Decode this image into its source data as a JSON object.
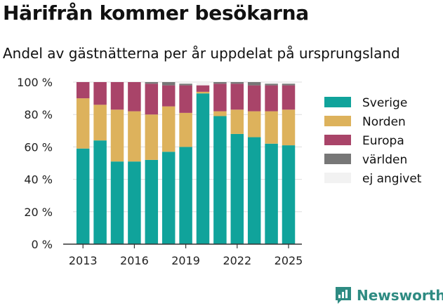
{
  "title": "Härifrån kommer besökarna",
  "subtitle": "Andel av gästnätterna per år uppdelat på ursprungsland",
  "brand": "Newsworthy",
  "colors": {
    "Sverige": "#10a39b",
    "Norden": "#ddb25c",
    "Europa": "#a94469",
    "världen": "#777777",
    "ej angivet": "#f2f2f2"
  },
  "chart_data": {
    "type": "bar",
    "stacked": true,
    "categories": [
      "2013",
      "2014",
      "2015",
      "2016",
      "2017",
      "2018",
      "2019",
      "2020",
      "2021",
      "2022",
      "2023",
      "2024",
      "2025"
    ],
    "series": [
      {
        "name": "Sverige",
        "values": [
          59,
          64,
          51,
          51,
          52,
          57,
          60,
          93,
          79,
          68,
          66,
          62,
          61
        ]
      },
      {
        "name": "Norden",
        "values": [
          31,
          22,
          32,
          31,
          28,
          28,
          21,
          1,
          3,
          15,
          16,
          20,
          22
        ]
      },
      {
        "name": "Europa",
        "values": [
          10,
          14,
          17,
          18,
          19,
          13,
          17,
          4,
          17,
          16,
          16,
          16,
          15
        ]
      },
      {
        "name": "världen",
        "values": [
          0,
          0,
          0,
          0,
          1,
          2,
          1,
          0,
          1,
          1,
          2,
          1,
          1
        ]
      },
      {
        "name": "ej angivet",
        "values": [
          0,
          0,
          0,
          0,
          0,
          0,
          1,
          2,
          0,
          0,
          0,
          1,
          1
        ]
      }
    ],
    "ylim": [
      0,
      100
    ],
    "yticks": [
      "0 %",
      "20 %",
      "40 %",
      "60 %",
      "80 %",
      "100 %"
    ],
    "xticks": [
      "2013",
      "2016",
      "2019",
      "2022",
      "2025"
    ],
    "grid": true,
    "legend_position": "right"
  }
}
